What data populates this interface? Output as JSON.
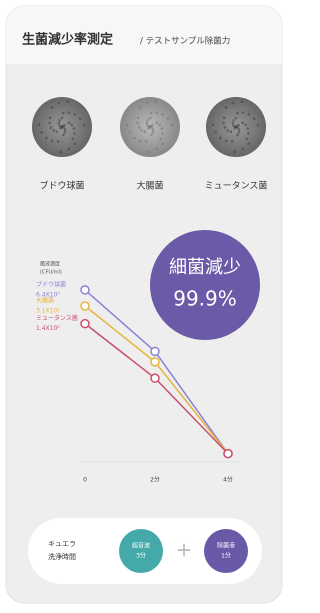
{
  "header": {
    "title": "生菌減少率測定",
    "subtitle": "/ テストサンプル除菌力"
  },
  "samples": [
    "ブドウ球菌",
    "大腸菌",
    "ミュータンス菌"
  ],
  "badge": {
    "label": "細菌減少",
    "value": "99.9%"
  },
  "chart_data": {
    "type": "line",
    "y_label": [
      "菌液濃度",
      "(CFU/ml)"
    ],
    "categories": [
      "0",
      "2分",
      "4分"
    ],
    "log_scale": true,
    "ylim": [
      300,
      1000000
    ],
    "series": [
      {
        "name": "ブドウ球菌",
        "color": "#8c82d4",
        "values": [
          640000,
          40000,
          400
        ],
        "value_labels": [
          "6.4X10⁵",
          null,
          null
        ]
      },
      {
        "name": "大腸菌",
        "color": "#e6b43c",
        "values": [
          310000,
          25000,
          400
        ],
        "value_labels": [
          "3.1X10⁵",
          null,
          null
        ]
      },
      {
        "name": "ミュータンス菌",
        "color": "#c8506e",
        "values": [
          140000,
          12000,
          400
        ],
        "value_labels": [
          "1.4X10⁵",
          null,
          null
        ]
      }
    ]
  },
  "footer": {
    "label": [
      "キュエラ",
      "洗浄時間"
    ],
    "operator": "+",
    "steps": [
      {
        "name": "超音波",
        "time": "3分",
        "color": "#45a9a9"
      },
      {
        "name": "除菌液",
        "time": "1分",
        "color": "#6a59a8"
      }
    ]
  }
}
